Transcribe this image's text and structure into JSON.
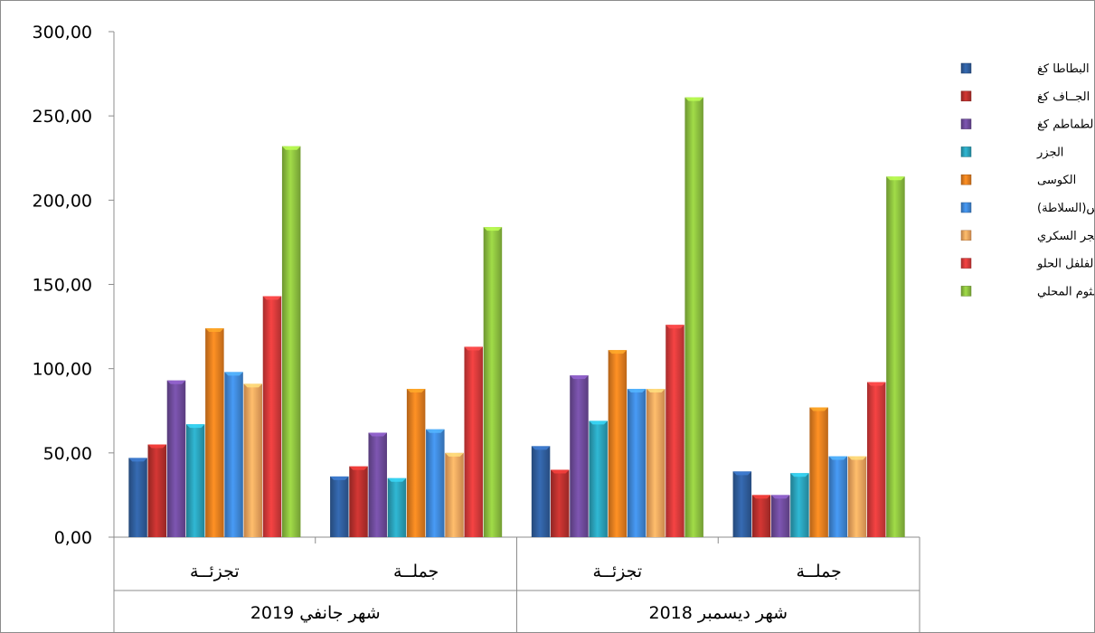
{
  "chart_data": {
    "type": "bar",
    "ylim": [
      0,
      300
    ],
    "yticks": [
      "0,00",
      "50,00",
      "100,00",
      "150,00",
      "200,00",
      "250,00",
      "300,00"
    ],
    "categories": [
      "تجزئــة",
      "جملــة",
      "تجزئــة",
      "جملــة"
    ],
    "groups": [
      {
        "label": "شهر جانفي 2019",
        "span": [
          0,
          1
        ]
      },
      {
        "label": "شهر ديسمبر  2018",
        "span": [
          2,
          3
        ]
      }
    ],
    "legend_position": "right",
    "series": [
      {
        "name": "البطاطا كغ",
        "color": "#2f5d9c",
        "values": [
          47,
          36,
          54,
          39
        ]
      },
      {
        "name": "البصل الجــاف كغ",
        "color": "#b8302d",
        "values": [
          55,
          42,
          40,
          25
        ]
      },
      {
        "name": "الطماطم كغ",
        "color": "#6e4b9b",
        "values": [
          93,
          62,
          96,
          25
        ]
      },
      {
        "name": "الجزر",
        "color": "#2aa0b8",
        "values": [
          67,
          35,
          69,
          38
        ]
      },
      {
        "name": "الكوسى",
        "color": "#e57e1f",
        "values": [
          124,
          88,
          111,
          77
        ]
      },
      {
        "name": "الخس(السلاطة)",
        "color": "#3f87d6",
        "values": [
          98,
          64,
          88,
          48
        ]
      },
      {
        "name": "البنجر السكري",
        "color": "#f5a55e",
        "values": [
          91,
          50,
          88,
          48
        ]
      },
      {
        "name": "الفلفل الحلو",
        "color": "#d63a3a",
        "values": [
          143,
          113,
          126,
          92
        ]
      },
      {
        "name": "الثوم المحلي",
        "color": "#8cbf3f",
        "values": [
          232,
          184,
          261,
          214
        ]
      }
    ]
  }
}
